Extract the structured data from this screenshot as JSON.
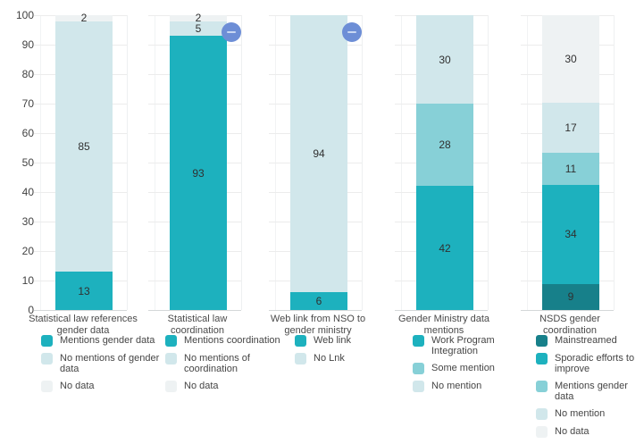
{
  "y_axis": {
    "tick_labels": [
      "100",
      "90",
      "80",
      "70",
      "60",
      "50",
      "40",
      "30",
      "20",
      "10",
      "0"
    ]
  },
  "colors": {
    "teal": "#1db1be",
    "medium_teal": "#87d0d7",
    "light_blue": "#d1e7eb",
    "pale_gray": "#eef2f3",
    "dark_teal": "#17808a",
    "badge_blue": "#6d8ed6",
    "badge_dash": "#c9d7f3"
  },
  "chart_data": [
    {
      "type": "bar",
      "stacked": true,
      "ylim": [
        0,
        100
      ],
      "grid": true,
      "legend_position": "bottom",
      "title": "Statistical law references\ngender data",
      "segments": [
        {
          "name": "Mentions gender data",
          "value": 13,
          "color": "teal",
          "legend_label": "Mentions gender data"
        },
        {
          "name": "No mentions of gender data",
          "value": 85,
          "color": "light_blue",
          "legend_label": "No mentions of gender\ndata"
        },
        {
          "name": "No data",
          "value": 2,
          "color": "pale_gray",
          "legend_label": "No data"
        }
      ],
      "annotation": null
    },
    {
      "type": "bar",
      "stacked": true,
      "ylim": [
        0,
        100
      ],
      "grid": true,
      "legend_position": "bottom",
      "title": "Statistical law\ncoordination",
      "segments": [
        {
          "name": "Mentions coordination",
          "value": 93,
          "color": "teal",
          "legend_label": "Mentions coordination"
        },
        {
          "name": "No mentions of coordination",
          "value": 5,
          "color": "light_blue",
          "legend_label": "No mentions of\ncoordination"
        },
        {
          "name": "No data",
          "value": 2,
          "color": "pale_gray",
          "legend_label": "No data"
        }
      ],
      "annotation": "minus-badge"
    },
    {
      "type": "bar",
      "stacked": true,
      "ylim": [
        0,
        100
      ],
      "grid": true,
      "legend_position": "bottom",
      "title": "Web link from NSO to\ngender ministry",
      "segments": [
        {
          "name": "Web link",
          "value": 6,
          "color": "teal",
          "legend_label": "Web link"
        },
        {
          "name": "No Lnk",
          "value": 94,
          "color": "light_blue",
          "legend_label": "No Lnk"
        }
      ],
      "annotation": "minus-badge"
    },
    {
      "type": "bar",
      "stacked": true,
      "ylim": [
        0,
        100
      ],
      "grid": true,
      "legend_position": "bottom",
      "title": "Gender Ministry data\nmentions",
      "segments": [
        {
          "name": "Work Program Integration",
          "value": 42,
          "color": "teal",
          "legend_label": "Work Program\nIntegration"
        },
        {
          "name": "Some mention",
          "value": 28,
          "color": "medium_teal",
          "legend_label": "Some mention"
        },
        {
          "name": "No mention",
          "value": 30,
          "color": "light_blue",
          "legend_label": "No mention"
        }
      ],
      "annotation": null
    },
    {
      "type": "bar",
      "stacked": true,
      "ylim": [
        0,
        100
      ],
      "grid": true,
      "legend_position": "bottom",
      "title": "NSDS gender\ncoordination",
      "segments": [
        {
          "name": "Mainstreamed",
          "value": 9,
          "color": "dark_teal",
          "legend_label": "Mainstreamed"
        },
        {
          "name": "Sporadic efforts to improve",
          "value": 34,
          "color": "teal",
          "legend_label": "Sporadic efforts to\nimprove"
        },
        {
          "name": "Mentions gender data",
          "value": 11,
          "color": "medium_teal",
          "legend_label": "Mentions gender data"
        },
        {
          "name": "No mention",
          "value": 17,
          "color": "light_blue",
          "legend_label": "No mention"
        },
        {
          "name": "No data",
          "value": 30,
          "color": "pale_gray",
          "legend_label": "No data"
        }
      ],
      "annotation": null
    }
  ]
}
